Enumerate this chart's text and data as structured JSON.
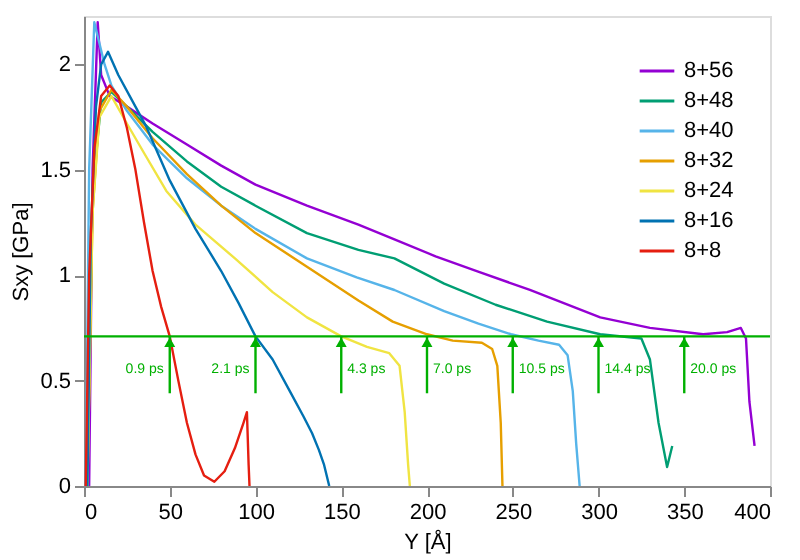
{
  "chart_data": {
    "type": "line",
    "xlabel": "Y [Å]",
    "ylabel": "Sxy [GPa]",
    "xlim": [
      0,
      400
    ],
    "ylim": [
      0,
      2.23
    ],
    "xticks": [
      0,
      50,
      100,
      150,
      200,
      250,
      300,
      350,
      400
    ],
    "yticks": [
      0,
      0.5,
      1,
      1.5,
      2
    ],
    "grid": false,
    "legend": "top right",
    "marker": "none",
    "line_style": "solid",
    "series": [
      {
        "name": "8+56",
        "color": "#9400d3",
        "x": [
          3,
          5,
          8,
          10,
          15,
          25,
          40,
          60,
          80,
          100,
          130,
          160,
          181,
          205,
          229,
          260,
          301,
          330,
          361,
          375,
          383,
          386,
          388,
          391
        ],
        "values": [
          0,
          1.5,
          2.2,
          1.95,
          1.85,
          1.8,
          1.72,
          1.62,
          1.52,
          1.43,
          1.33,
          1.24,
          1.17,
          1.09,
          1.02,
          0.93,
          0.8,
          0.75,
          0.72,
          0.73,
          0.75,
          0.7,
          0.4,
          0.19
        ]
      },
      {
        "name": "8+48",
        "color": "#009e73",
        "x": [
          2,
          5,
          10,
          16,
          25,
          40,
          60,
          80,
          100,
          130,
          160,
          181,
          210,
          240,
          270,
          301,
          325,
          330,
          335,
          340,
          343
        ],
        "values": [
          0,
          1.4,
          1.82,
          1.87,
          1.8,
          1.68,
          1.54,
          1.42,
          1.33,
          1.2,
          1.12,
          1.08,
          0.96,
          0.86,
          0.78,
          0.72,
          0.7,
          0.6,
          0.3,
          0.09,
          0.19
        ]
      },
      {
        "name": "8+40",
        "color": "#56b4e9",
        "x": [
          1,
          3,
          6,
          12,
          16,
          25,
          40,
          60,
          80,
          100,
          130,
          159,
          181,
          210,
          230,
          249,
          265,
          277,
          282,
          285,
          287,
          289
        ],
        "values": [
          0,
          1.5,
          2.2,
          2.0,
          1.9,
          1.78,
          1.62,
          1.46,
          1.33,
          1.22,
          1.08,
          0.99,
          0.93,
          0.83,
          0.77,
          0.72,
          0.69,
          0.67,
          0.62,
          0.45,
          0.2,
          0
        ]
      },
      {
        "name": "8+32",
        "color": "#e69f00",
        "x": [
          2,
          5,
          9,
          16,
          25,
          40,
          60,
          80,
          100,
          132,
          160,
          180,
          200,
          215,
          232,
          238,
          241,
          243,
          244
        ],
        "values": [
          0,
          1.3,
          1.78,
          1.88,
          1.8,
          1.65,
          1.48,
          1.33,
          1.2,
          1.03,
          0.88,
          0.78,
          0.72,
          0.69,
          0.68,
          0.65,
          0.57,
          0.3,
          0
        ]
      },
      {
        "name": "8+24",
        "color": "#f0e442",
        "x": [
          2,
          5,
          9,
          16,
          25,
          35,
          48,
          65,
          88,
          110,
          130,
          150,
          165,
          178,
          184,
          187,
          189,
          190
        ],
        "values": [
          0,
          1.3,
          1.75,
          1.85,
          1.72,
          1.58,
          1.4,
          1.24,
          1.08,
          0.92,
          0.8,
          0.71,
          0.66,
          0.63,
          0.57,
          0.35,
          0.1,
          0
        ]
      },
      {
        "name": "8+16",
        "color": "#0072b2",
        "x": [
          2,
          4,
          7,
          10,
          14,
          20,
          30,
          36,
          50,
          65,
          80,
          90,
          100,
          110,
          120,
          128,
          133,
          137,
          140,
          143
        ],
        "values": [
          0,
          1.2,
          1.8,
          2.0,
          2.06,
          1.95,
          1.8,
          1.71,
          1.45,
          1.22,
          1.02,
          0.87,
          0.71,
          0.6,
          0.45,
          0.33,
          0.25,
          0.17,
          0.1,
          0
        ]
      },
      {
        "name": "8+8",
        "color": "#e51e10",
        "x": [
          1,
          3,
          6,
          10,
          15,
          20,
          25,
          30,
          35,
          40,
          45,
          50,
          55,
          60,
          65,
          70,
          76,
          82,
          88,
          93,
          95,
          96,
          96.5
        ],
        "values": [
          0,
          1.0,
          1.6,
          1.85,
          1.9,
          1.85,
          1.7,
          1.5,
          1.25,
          1.02,
          0.85,
          0.71,
          0.5,
          0.3,
          0.15,
          0.05,
          0.02,
          0.07,
          0.18,
          0.3,
          0.35,
          0.1,
          0
        ]
      }
    ],
    "ref_lines": [
      {
        "axis": "y",
        "value": 0.71,
        "color": "#00b000"
      }
    ],
    "annotations": [
      {
        "text": "0.9 ps",
        "x": 50,
        "y": 0.71
      },
      {
        "text": "2.1 ps",
        "x": 100,
        "y": 0.71
      },
      {
        "text": "4.3 ps",
        "x": 150,
        "y": 0.71
      },
      {
        "text": "7.0 ps",
        "x": 200,
        "y": 0.71
      },
      {
        "text": "10.5 ps",
        "x": 250,
        "y": 0.71
      },
      {
        "text": "14.4 ps",
        "x": 300,
        "y": 0.71
      },
      {
        "text": "20.0 ps",
        "x": 350,
        "y": 0.71
      }
    ]
  }
}
